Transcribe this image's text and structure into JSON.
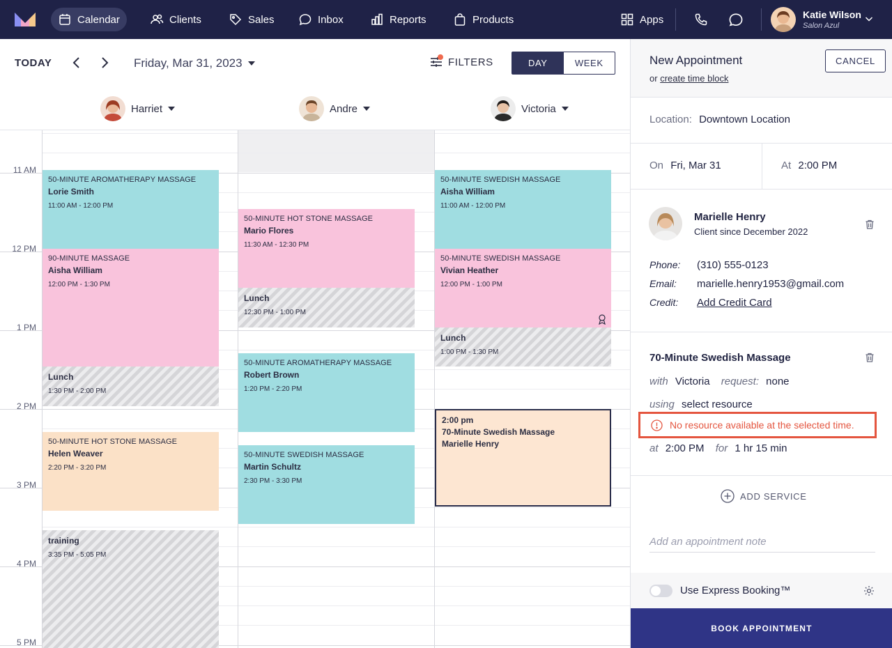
{
  "nav": {
    "items": [
      {
        "label": "Calendar",
        "icon": "calendar-icon",
        "active": true
      },
      {
        "label": "Clients",
        "icon": "users-icon"
      },
      {
        "label": "Sales",
        "icon": "tag-icon"
      },
      {
        "label": "Inbox",
        "icon": "chat-icon"
      },
      {
        "label": "Reports",
        "icon": "bar-chart-icon"
      },
      {
        "label": "Products",
        "icon": "shopping-bag-icon"
      }
    ],
    "apps_label": "Apps",
    "user": {
      "name": "Katie Wilson",
      "salon": "Salon Azul"
    }
  },
  "calendar": {
    "today_label": "TODAY",
    "date_label": "Friday, Mar 31, 2023",
    "filters_label": "FILTERS",
    "view_day": "DAY",
    "view_week": "WEEK",
    "active_view": "DAY",
    "staff": [
      "Harriet",
      "Andre",
      "Victoria"
    ],
    "time_labels": [
      "11 AM",
      "12 PM",
      "1 PM",
      "2 PM",
      "3 PM",
      "4 PM",
      "5 PM"
    ],
    "appointments": [
      {
        "col": 0,
        "kind": "teal",
        "service": "50-Minute Aromatherapy Massage",
        "client": "Lorie Smith",
        "time": "11:00 AM - 12:00 PM"
      },
      {
        "col": 0,
        "kind": "pink",
        "service": "90-Minute Massage",
        "client": "Aisha William",
        "time": "12:00 PM - 1:30 PM"
      },
      {
        "col": 0,
        "kind": "lunch",
        "service": "Lunch",
        "client": "",
        "time": "1:30 PM - 2:00 PM"
      },
      {
        "col": 0,
        "kind": "peach",
        "service": "50-Minute Hot Stone Massage",
        "client": "Helen Weaver",
        "time": "2:20 PM - 3:20 PM"
      },
      {
        "col": 0,
        "kind": "lunch",
        "service": "training",
        "client": "",
        "time": "3:35 PM - 5:05 PM"
      },
      {
        "col": 1,
        "kind": "pink",
        "service": "50-Minute Hot Stone Massage",
        "client": "Mario Flores",
        "time": "11:30 AM - 12:30 PM"
      },
      {
        "col": 1,
        "kind": "lunch",
        "service": "Lunch",
        "client": "",
        "time": "12:30 PM - 1:00 PM"
      },
      {
        "col": 1,
        "kind": "teal",
        "service": "50-Minute Aromatherapy Massage",
        "client": "Robert Brown",
        "time": "1:20 PM - 2:20 PM"
      },
      {
        "col": 1,
        "kind": "teal",
        "service": "50-Minute Swedish Massage",
        "client": "Martin Schultz",
        "time": "2:30 PM - 3:30 PM"
      },
      {
        "col": 2,
        "kind": "teal",
        "service": "50-Minute Swedish Massage",
        "client": "Aisha William",
        "time": "11:00 AM - 12:00 PM"
      },
      {
        "col": 2,
        "kind": "pink",
        "service": "50-Minute Swedish Massage",
        "client": "Vivian Heather",
        "time": "12:00 PM - 1:00 PM",
        "badge": "award-icon"
      },
      {
        "col": 2,
        "kind": "lunch",
        "service": "Lunch",
        "client": "",
        "time": "1:00 PM - 1:30 PM"
      }
    ],
    "selected_slot": {
      "time": "2:00 pm",
      "service": "70-Minute Swedish Massage",
      "client": "Marielle Henry"
    }
  },
  "panel": {
    "title": "New Appointment",
    "sub_prefix": "or",
    "sub_link": "create time block",
    "cancel_label": "CANCEL",
    "location_label": "Location:",
    "location_value": "Downtown Location",
    "on_label": "On",
    "on_value": "Fri, Mar 31",
    "at_label": "At",
    "at_value": "2:00 PM",
    "client": {
      "name": "Marielle Henry",
      "since": "Client since December 2022",
      "phone_label": "Phone:",
      "phone": "(310) 555-0123",
      "email_label": "Email:",
      "email": "marielle.henry1953@gmail.com",
      "credit_label": "Credit:",
      "credit_link": "Add Credit Card"
    },
    "service": {
      "name": "70-Minute Swedish Massage",
      "with_label": "with",
      "with_value": "Victoria",
      "request_label": "request:",
      "request_value": "none",
      "using_label": "using",
      "using_value": "select resource",
      "warning": "No resource available at the selected time.",
      "at_label": "at",
      "at_value": "2:00 PM",
      "for_label": "for",
      "for_value": "1 hr 15 min"
    },
    "add_service_label": "ADD SERVICE",
    "note_placeholder": "Add an appointment note",
    "express_label": "Use Express Booking™",
    "book_label": "BOOK APPOINTMENT"
  },
  "colors": {
    "nav_bg": "#1f2247",
    "teal": "#a0dde1",
    "pink": "#f9c3dc",
    "peach": "#fbe1c7",
    "warning": "#e4553f",
    "book_button": "#2f3486"
  }
}
